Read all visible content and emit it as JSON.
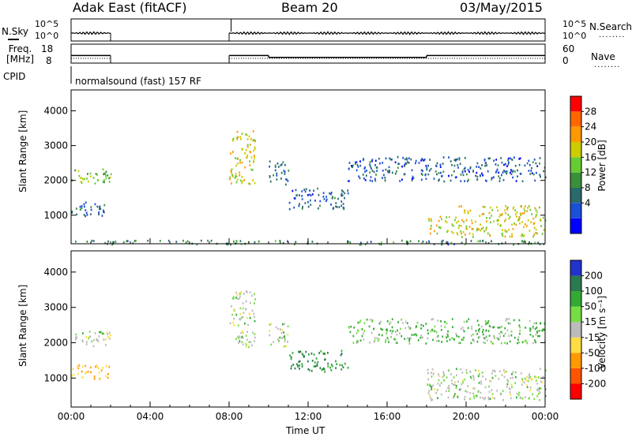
{
  "header": {
    "title_left": "Adak East (fitACF)",
    "title_mid": "Beam 20",
    "title_right": "03/May/2015"
  },
  "top_panels": {
    "nsky_label": "N.Sky",
    "nsky_ticks": [
      "10^5",
      "10^0"
    ],
    "nsearch_label": "N.Search",
    "nsearch_ticks": [
      "10^5",
      "10^0"
    ],
    "legend_dots": "........",
    "freq_label_line1": "Freq.",
    "freq_label_line2": "[MHz]",
    "freq_ticks": [
      "18",
      "8"
    ],
    "nave_label": "Nave",
    "nave_ticks": [
      "60",
      "0"
    ],
    "cpid_label": "CPID",
    "cpid_text": "normalsound (fast) 157 RF"
  },
  "axes": {
    "ylabel": "Slant Range [km]",
    "xlabel": "Time UT",
    "x_ticks": [
      "00:00",
      "04:00",
      "08:00",
      "12:00",
      "16:00",
      "20:00",
      "00:00"
    ],
    "y_ticks": [
      "1000",
      "2000",
      "3000",
      "4000"
    ]
  },
  "colorbars": {
    "power": {
      "label": "Power [dB]",
      "ticks": [
        "28",
        "24",
        "20",
        "16",
        "12",
        "8",
        "4"
      ],
      "colors": [
        "#0000ff",
        "#1a4fd6",
        "#2a6a6a",
        "#3a8f3a",
        "#66cc33",
        "#cccc00",
        "#ff9900",
        "#ff6600",
        "#ff0000"
      ]
    },
    "velocity": {
      "label": "Velocity [m s⁻¹]",
      "ticks": [
        "200",
        "100",
        "50",
        "15",
        "-15",
        "-50",
        "-100",
        "-200"
      ],
      "colors": [
        "#2233cc",
        "#2a7a50",
        "#33aa33",
        "#77dd44",
        "#bbbbbb",
        "#ffdd44",
        "#ff9900",
        "#ff5500",
        "#ff0000"
      ]
    }
  },
  "chart_data": [
    {
      "type": "line",
      "title": "N.Sky / N.Search",
      "x_range_hours": [
        0,
        24
      ],
      "segments_hours": [
        [
          0.0,
          2.0
        ],
        [
          8.0,
          24.0
        ]
      ],
      "nsky_level": 0.3,
      "nsky_level_after_18": 0.25
    },
    {
      "type": "line",
      "title": "Freq. / Nave",
      "x_range_hours": [
        0,
        24
      ],
      "freq_mhz": [
        {
          "x": [
            0.0,
            2.0
          ],
          "y": 12
        },
        {
          "x": [
            8.0,
            10.0
          ],
          "y": 12
        },
        {
          "x": [
            10.0,
            18.0
          ],
          "y": 11
        },
        {
          "x": [
            18.0,
            24.0
          ],
          "y": 12
        }
      ],
      "freq_range": [
        8,
        18
      ],
      "nave_level": 20,
      "nave_range": [
        0,
        60
      ]
    },
    {
      "type": "heatmap",
      "title": "Power [dB]",
      "x_range_hours": [
        0,
        24
      ],
      "y_range_km": [
        180,
        4600
      ],
      "echo_regions": [
        {
          "t0": 0.0,
          "t1": 2.0,
          "r0": 1900,
          "r1": 2350,
          "power": 16
        },
        {
          "t0": 0.0,
          "t1": 2.0,
          "r0": 1000,
          "r1": 1400,
          "power": 6
        },
        {
          "t0": 8.0,
          "t1": 9.3,
          "r0": 1900,
          "r1": 3500,
          "power": 20
        },
        {
          "t0": 10.0,
          "t1": 11.0,
          "r0": 1900,
          "r1": 2600,
          "power": 8
        },
        {
          "t0": 11.0,
          "t1": 14.0,
          "r0": 1200,
          "r1": 1800,
          "power": 6
        },
        {
          "t0": 14.0,
          "t1": 24.0,
          "r0": 2000,
          "r1": 2700,
          "power": 6
        },
        {
          "t0": 18.0,
          "t1": 19.5,
          "r0": 500,
          "r1": 1000,
          "power": 20
        },
        {
          "t0": 19.5,
          "t1": 24.0,
          "r0": 400,
          "r1": 1300,
          "power": 20
        },
        {
          "t0": 0.0,
          "t1": 24.0,
          "r0": 180,
          "r1": 300,
          "power": 10
        }
      ]
    },
    {
      "type": "heatmap",
      "title": "Velocity [m s^-1]",
      "x_range_hours": [
        0,
        24
      ],
      "y_range_km": [
        180,
        4600
      ],
      "echo_regions": [
        {
          "t0": 0.0,
          "t1": 2.0,
          "r0": 1900,
          "r1": 2350,
          "velocity": 0
        },
        {
          "t0": 0.0,
          "t1": 2.0,
          "r0": 1000,
          "r1": 1400,
          "velocity": -50
        },
        {
          "t0": 8.0,
          "t1": 9.3,
          "r0": 1900,
          "r1": 3500,
          "velocity": 0
        },
        {
          "t0": 10.0,
          "t1": 11.0,
          "r0": 1900,
          "r1": 2600,
          "velocity": 0
        },
        {
          "t0": 11.0,
          "t1": 14.0,
          "r0": 1200,
          "r1": 1800,
          "velocity": 50
        },
        {
          "t0": 14.0,
          "t1": 24.0,
          "r0": 2000,
          "r1": 2700,
          "velocity": 15
        },
        {
          "t0": 18.0,
          "t1": 24.0,
          "r0": 400,
          "r1": 1300,
          "velocity": 0
        }
      ]
    }
  ]
}
